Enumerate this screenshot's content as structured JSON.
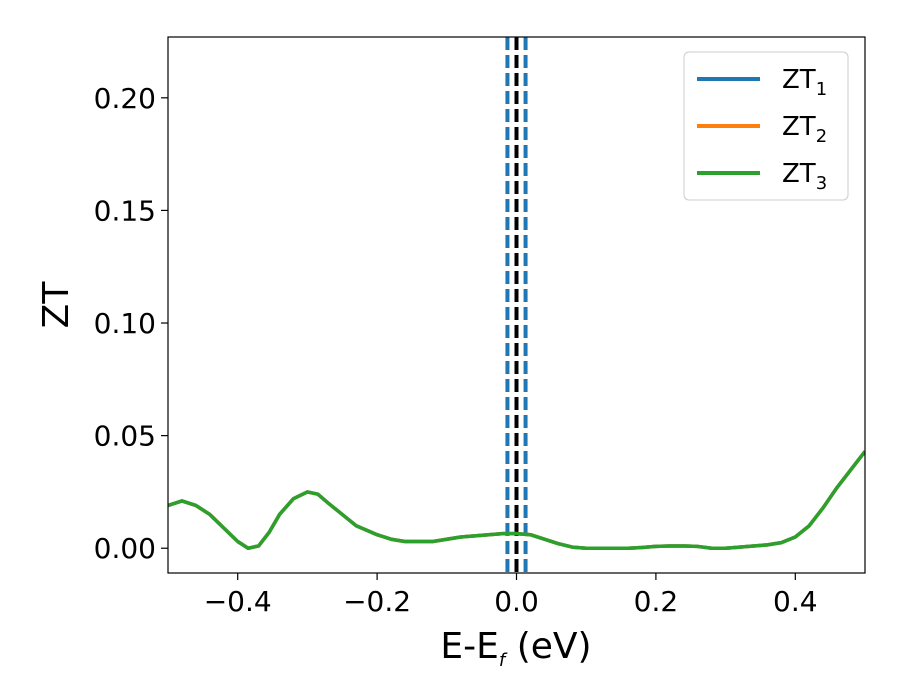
{
  "chart_data": {
    "type": "line",
    "title": "",
    "xlabel": {
      "main": "E-E",
      "sub": "f",
      "suffix": " (eV)"
    },
    "ylabel": "ZT",
    "xlim": [
      -0.5,
      0.5
    ],
    "ylim": [
      -0.011,
      0.227
    ],
    "xticks": [
      -0.4,
      -0.2,
      0.0,
      0.2,
      0.4
    ],
    "xtick_labels": [
      "−0.4",
      "−0.2",
      "0.0",
      "0.2",
      "0.4"
    ],
    "yticks": [
      0.0,
      0.05,
      0.1,
      0.15,
      0.2
    ],
    "ytick_labels": [
      "0.00",
      "0.05",
      "0.10",
      "0.15",
      "0.20"
    ],
    "grid": false,
    "legend_position": "top-right",
    "series": [
      {
        "name": "ZT",
        "name_sub": "1",
        "color": "#1f77b4",
        "x": [
          -0.5,
          -0.48,
          -0.46,
          -0.44,
          -0.42,
          -0.4,
          -0.385,
          -0.37,
          -0.355,
          -0.34,
          -0.32,
          -0.3,
          -0.285,
          -0.27,
          -0.25,
          -0.23,
          -0.2,
          -0.18,
          -0.16,
          -0.14,
          -0.12,
          -0.1,
          -0.08,
          -0.06,
          -0.04,
          -0.02,
          0.0,
          0.02,
          0.04,
          0.06,
          0.08,
          0.1,
          0.12,
          0.14,
          0.16,
          0.18,
          0.2,
          0.22,
          0.24,
          0.26,
          0.28,
          0.3,
          0.32,
          0.34,
          0.36,
          0.38,
          0.4,
          0.42,
          0.44,
          0.46,
          0.48,
          0.5
        ],
        "y": [
          0.019,
          0.021,
          0.019,
          0.015,
          0.009,
          0.003,
          0.0,
          0.001,
          0.007,
          0.015,
          0.022,
          0.025,
          0.024,
          0.02,
          0.015,
          0.01,
          0.006,
          0.004,
          0.003,
          0.003,
          0.003,
          0.004,
          0.005,
          0.0055,
          0.006,
          0.0065,
          0.0065,
          0.006,
          0.004,
          0.002,
          0.0005,
          0.0,
          0.0,
          0.0,
          0.0,
          0.0003,
          0.0008,
          0.001,
          0.001,
          0.0008,
          0.0,
          0.0,
          0.0005,
          0.001,
          0.0015,
          0.0025,
          0.005,
          0.01,
          0.018,
          0.027,
          0.035,
          0.043
        ]
      },
      {
        "name": "ZT",
        "name_sub": "2",
        "color": "#ff7f0e",
        "x": [
          -0.5,
          -0.48,
          -0.46,
          -0.44,
          -0.42,
          -0.4,
          -0.385,
          -0.37,
          -0.355,
          -0.34,
          -0.32,
          -0.3,
          -0.285,
          -0.27,
          -0.25,
          -0.23,
          -0.2,
          -0.18,
          -0.16,
          -0.14,
          -0.12,
          -0.1,
          -0.08,
          -0.06,
          -0.04,
          -0.02,
          0.0,
          0.02,
          0.04,
          0.06,
          0.08,
          0.1,
          0.12,
          0.14,
          0.16,
          0.18,
          0.2,
          0.22,
          0.24,
          0.26,
          0.28,
          0.3,
          0.32,
          0.34,
          0.36,
          0.38,
          0.4,
          0.42,
          0.44,
          0.46,
          0.48,
          0.5
        ],
        "y": [
          0.019,
          0.021,
          0.019,
          0.015,
          0.009,
          0.003,
          0.0,
          0.001,
          0.007,
          0.015,
          0.022,
          0.025,
          0.024,
          0.02,
          0.015,
          0.01,
          0.006,
          0.004,
          0.003,
          0.003,
          0.003,
          0.004,
          0.005,
          0.0055,
          0.006,
          0.0065,
          0.0065,
          0.006,
          0.004,
          0.002,
          0.0005,
          0.0,
          0.0,
          0.0,
          0.0,
          0.0003,
          0.0008,
          0.001,
          0.001,
          0.0008,
          0.0,
          0.0,
          0.0005,
          0.001,
          0.0015,
          0.0025,
          0.005,
          0.01,
          0.018,
          0.027,
          0.035,
          0.043
        ]
      },
      {
        "name": "ZT",
        "name_sub": "3",
        "color": "#2ca02c",
        "x": [
          -0.5,
          -0.48,
          -0.46,
          -0.44,
          -0.42,
          -0.4,
          -0.385,
          -0.37,
          -0.355,
          -0.34,
          -0.32,
          -0.3,
          -0.285,
          -0.27,
          -0.25,
          -0.23,
          -0.2,
          -0.18,
          -0.16,
          -0.14,
          -0.12,
          -0.1,
          -0.08,
          -0.06,
          -0.04,
          -0.02,
          0.0,
          0.02,
          0.04,
          0.06,
          0.08,
          0.1,
          0.12,
          0.14,
          0.16,
          0.18,
          0.2,
          0.22,
          0.24,
          0.26,
          0.28,
          0.3,
          0.32,
          0.34,
          0.36,
          0.38,
          0.4,
          0.42,
          0.44,
          0.46,
          0.48,
          0.5
        ],
        "y": [
          0.019,
          0.021,
          0.019,
          0.015,
          0.009,
          0.003,
          0.0,
          0.001,
          0.007,
          0.015,
          0.022,
          0.025,
          0.024,
          0.02,
          0.015,
          0.01,
          0.006,
          0.004,
          0.003,
          0.003,
          0.003,
          0.004,
          0.005,
          0.0055,
          0.006,
          0.0065,
          0.0065,
          0.006,
          0.004,
          0.002,
          0.0005,
          0.0,
          0.0,
          0.0,
          0.0,
          0.0003,
          0.0008,
          0.001,
          0.001,
          0.0008,
          0.0,
          0.0,
          0.0005,
          0.001,
          0.0015,
          0.0025,
          0.005,
          0.01,
          0.018,
          0.027,
          0.035,
          0.043
        ]
      }
    ],
    "vertical_lines": [
      {
        "x": 0.0,
        "color": "#000000",
        "style": "dashed"
      },
      {
        "x": -0.013,
        "color": "#1f77b4",
        "style": "dashed"
      },
      {
        "x": 0.013,
        "color": "#1f77b4",
        "style": "dashed"
      }
    ]
  }
}
